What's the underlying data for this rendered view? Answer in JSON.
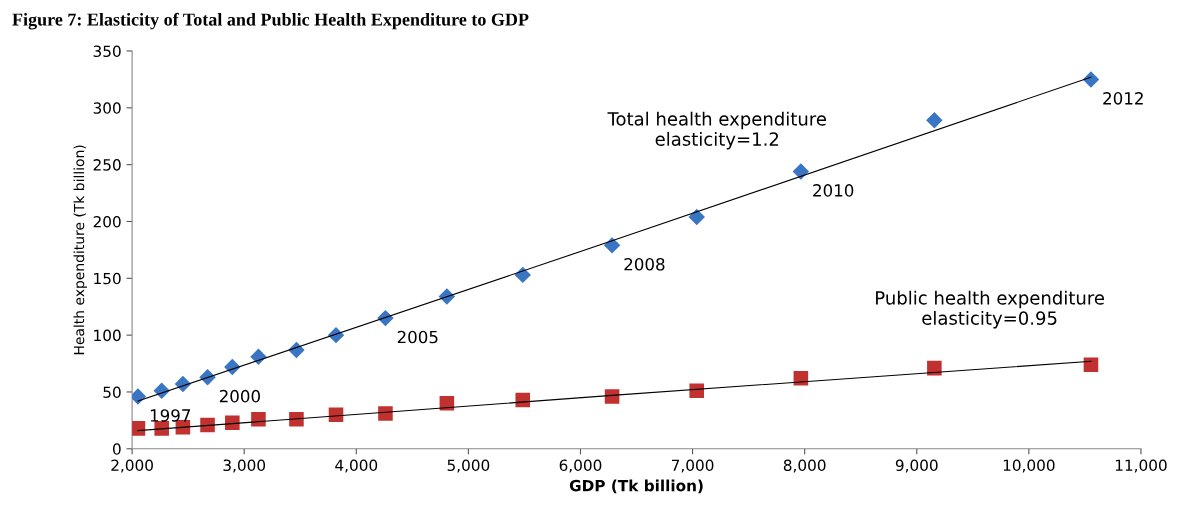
{
  "chart_data": {
    "type": "scatter",
    "title": "Figure 7: Elasticity of Total and Public Health Expenditure to GDP",
    "xlabel": "GDP (Tk billion)",
    "ylabel": "Health expenditure (Tk billion)",
    "series": [
      {
        "marker": "diamond",
        "color": "#3a75c4",
        "x": [
          2052,
          2264,
          2453,
          2673,
          2894,
          3127,
          3466,
          3819,
          4260,
          4808,
          5485,
          6282,
          7037,
          7966,
          9157,
          10554
        ],
        "values": [
          46,
          51,
          57,
          63,
          72,
          81,
          87,
          100,
          115,
          134,
          153,
          179,
          204,
          244,
          289,
          325
        ]
      },
      {
        "marker": "square",
        "color": "#c0312f",
        "x": [
          2052,
          2264,
          2453,
          2673,
          2894,
          3127,
          3466,
          3819,
          4260,
          4808,
          5485,
          6282,
          7037,
          7966,
          9157,
          10554
        ],
        "values": [
          18,
          18,
          19,
          21,
          23,
          26,
          26,
          30,
          31,
          40,
          43,
          46,
          51,
          62,
          71,
          74
        ]
      },
      {
        "type": "line",
        "color": "#000000",
        "x": [
          2052,
          6282,
          10554
        ],
        "values": [
          42,
          183,
          327
        ]
      },
      {
        "type": "line",
        "color": "#000000",
        "x": [
          2052,
          6282,
          10554
        ],
        "values": [
          16,
          47,
          77
        ]
      }
    ],
    "annotations": [
      {
        "text": "1997",
        "x": 2052,
        "y": 46
      },
      {
        "text": "2000",
        "x": 2673,
        "y": 63
      },
      {
        "text": "2005",
        "x": 4260,
        "y": 115
      },
      {
        "text": "2008",
        "x": 6282,
        "y": 179
      },
      {
        "text": "2010",
        "x": 7966,
        "y": 244
      },
      {
        "text": "2012",
        "x": 10554,
        "y": 325
      },
      "Total health expenditure\nelasticity=1.2",
      "Public health expenditure\nelasticity=0.95"
    ],
    "xlim": [
      2000,
      11000
    ],
    "xticks": [
      {
        "value": 2000,
        "label": "2,000"
      },
      {
        "value": 3000,
        "label": "3,000"
      },
      {
        "value": 4000,
        "label": "4,000"
      },
      {
        "value": 5000,
        "label": "5,000"
      },
      {
        "value": 6000,
        "label": "6,000"
      },
      {
        "value": 7000,
        "label": "7,000"
      },
      {
        "value": 8000,
        "label": "8,000"
      },
      {
        "value": 9000,
        "label": "9,000"
      },
      {
        "value": 10000,
        "label": "10,000"
      },
      {
        "value": 11000,
        "label": "11,000"
      }
    ],
    "ylim": [
      0,
      350
    ],
    "yticks": [
      0,
      50,
      100,
      150,
      200,
      250,
      300,
      350
    ],
    "grid": false,
    "legend": false
  }
}
